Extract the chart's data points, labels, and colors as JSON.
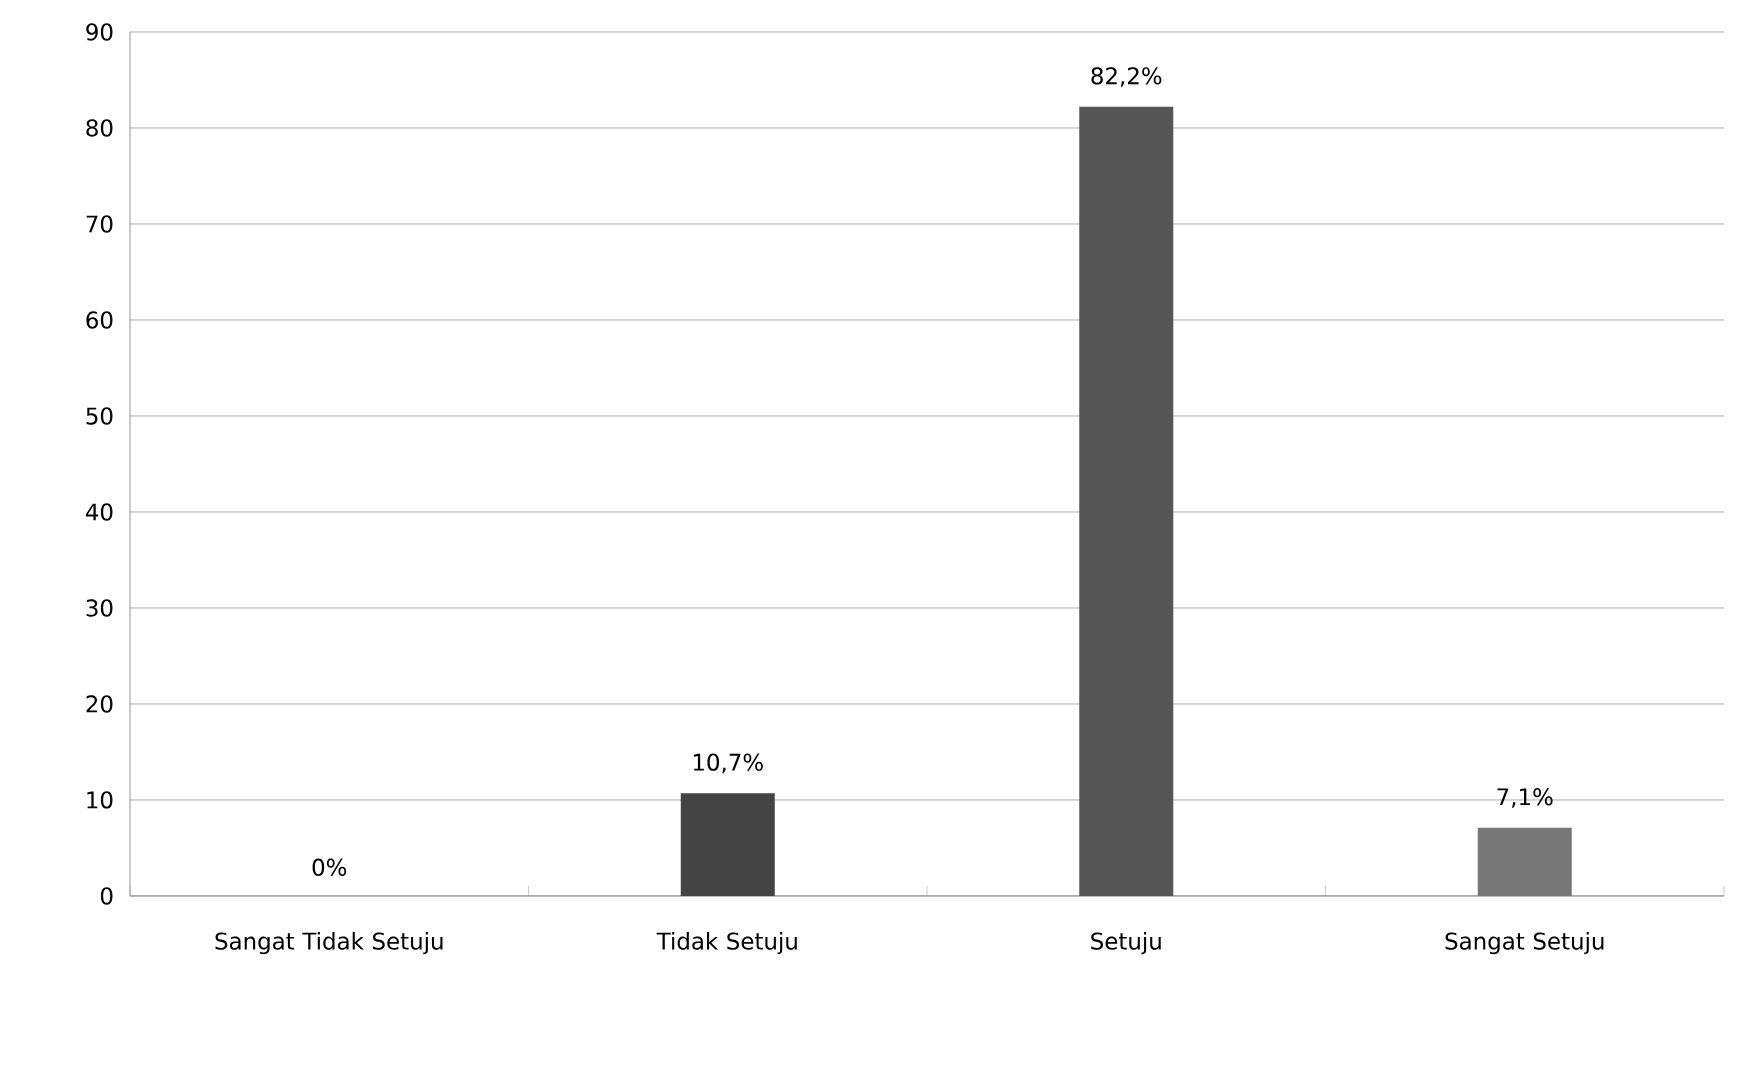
{
  "chart_data": {
    "type": "bar",
    "categories": [
      "Sangat Tidak Setuju",
      "Tidak Setuju",
      "Setuju",
      "Sangat Setuju"
    ],
    "values": [
      0,
      10.7,
      82.2,
      7.1
    ],
    "value_labels": [
      "0%",
      "10,7%",
      "82,2%",
      "7,1%"
    ],
    "colors": [
      "#555555",
      "#444444",
      "#555555",
      "#777777"
    ],
    "ylim": [
      0,
      90
    ],
    "yticks": [
      0,
      10,
      20,
      30,
      40,
      50,
      60,
      70,
      80,
      90
    ],
    "grid": "y"
  }
}
